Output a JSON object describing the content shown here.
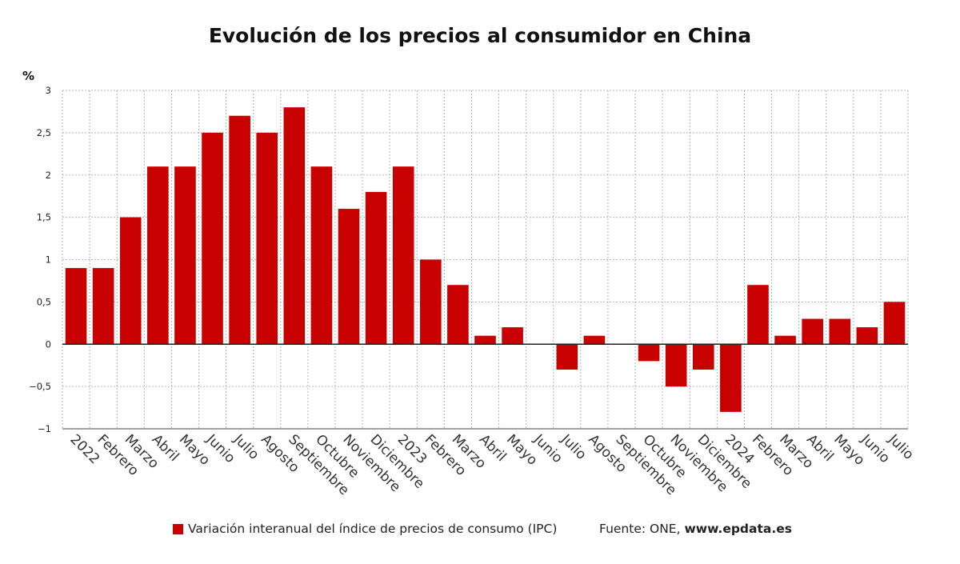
{
  "chart_data": {
    "type": "bar",
    "title": "Evolución de los precios al consumidor en China",
    "ylabel": "%",
    "xlabel": "",
    "ylim": [
      -1,
      3
    ],
    "yticks": [
      {
        "value": 3,
        "label": "3"
      },
      {
        "value": 2.5,
        "label": "2,5"
      },
      {
        "value": 2,
        "label": "2"
      },
      {
        "value": 1.5,
        "label": "1,5"
      },
      {
        "value": 1,
        "label": "1"
      },
      {
        "value": 0.5,
        "label": "0,5"
      },
      {
        "value": 0,
        "label": "0"
      },
      {
        "value": -0.5,
        "label": "−0,5"
      },
      {
        "value": -1,
        "label": "−1"
      }
    ],
    "grid": true,
    "categories": [
      "2022",
      "Febrero",
      "Marzo",
      "Abril",
      "Mayo",
      "Junio",
      "Julio",
      "Agosto",
      "Septiembre",
      "Octubre",
      "Noviembre",
      "Diciembre",
      "2023",
      "Febrero",
      "Marzo",
      "Abril",
      "Mayo",
      "Junio",
      "Julio",
      "Agosto",
      "Septiembre",
      "Octubre",
      "Noviembre",
      "Diciembre",
      "2024",
      "Febrero",
      "Marzo",
      "Abril",
      "Mayo",
      "Junio",
      "Julio"
    ],
    "series": [
      {
        "name": "Variación interanual del índice de precios de consumo (IPC)",
        "color": "#c80000",
        "values": [
          0.9,
          0.9,
          1.5,
          2.1,
          2.1,
          2.5,
          2.7,
          2.5,
          2.8,
          2.1,
          1.6,
          1.8,
          2.1,
          1.0,
          0.7,
          0.1,
          0.2,
          0.0,
          -0.3,
          0.1,
          0.0,
          -0.2,
          -0.5,
          -0.3,
          -0.8,
          0.7,
          0.1,
          0.3,
          0.3,
          0.2,
          0.5
        ]
      }
    ],
    "legend_position": "bottom-left"
  },
  "footer": {
    "legend_label": "Variación interanual del índice de precios de consumo (IPC)",
    "source_prefix": "Fuente: ONE, ",
    "source_url": "www.epdata.es"
  }
}
